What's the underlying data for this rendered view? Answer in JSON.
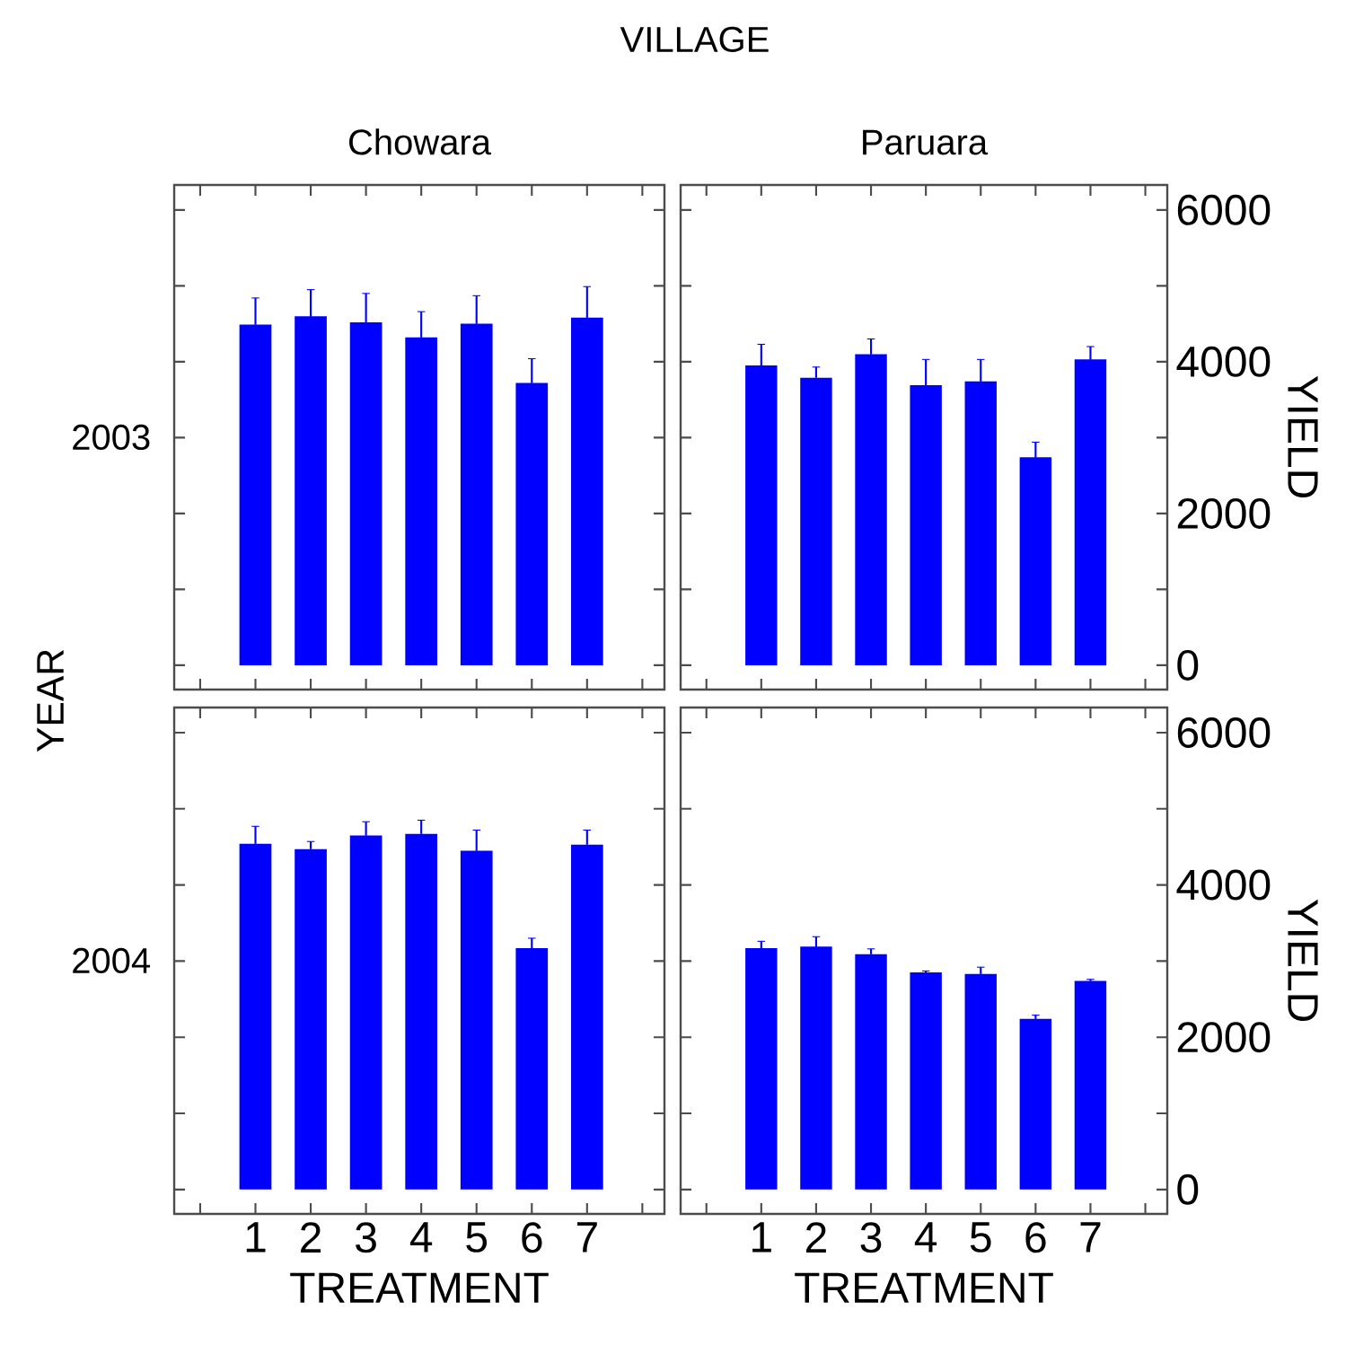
{
  "chart_data": [
    {
      "type": "bar",
      "title": "Chowara",
      "ylabel": "2003",
      "annotations": [
        "VILLAGE",
        "YEAR"
      ],
      "categories": [
        "1",
        "2",
        "3",
        "4",
        "5",
        "6",
        "7"
      ],
      "values": [
        4490,
        4600,
        4520,
        4320,
        4500,
        3720,
        4580
      ],
      "errors": [
        350,
        350,
        380,
        340,
        370,
        320,
        410
      ],
      "color": "#0000ff",
      "ylim": [
        -320,
        6330
      ],
      "yticks": [
        0,
        {
          "value": 1000,
          "label": null
        },
        2000,
        {
          "value": 3000,
          "label": null
        },
        4000,
        {
          "value": 5000,
          "label": null
        },
        6000
      ],
      "tick_labels": false
    },
    {
      "type": "bar",
      "title": "Paruara",
      "ylabel": "YIELD",
      "categories": [
        "1",
        "2",
        "3",
        "4",
        "5",
        "6",
        "7"
      ],
      "values": [
        3950,
        3790,
        4100,
        3690,
        3740,
        2740,
        4030
      ],
      "errors": [
        280,
        140,
        200,
        340,
        290,
        200,
        170
      ],
      "color": "#0000ff",
      "ylim": [
        -320,
        6330
      ],
      "yticks": [
        0,
        {
          "value": 1000,
          "label": null
        },
        2000,
        {
          "value": 3000,
          "label": null
        },
        4000,
        {
          "value": 5000,
          "label": null
        },
        6000
      ],
      "tick_labels": "y"
    },
    {
      "type": "bar",
      "ylabel": "2004",
      "xlabel": "TREATMENT",
      "categories": [
        "1",
        "2",
        "3",
        "4",
        "5",
        "6",
        "7"
      ],
      "values": [
        4540,
        4470,
        4650,
        4670,
        4450,
        3170,
        4530
      ],
      "errors": [
        230,
        100,
        180,
        180,
        270,
        130,
        190
      ],
      "color": "#0000ff",
      "ylim": [
        -320,
        6330
      ],
      "yticks": [
        0,
        {
          "value": 1000,
          "label": null
        },
        2000,
        {
          "value": 3000,
          "label": null
        },
        4000,
        {
          "value": 5000,
          "label": null
        },
        6000
      ],
      "tick_labels": "x"
    },
    {
      "type": "bar",
      "ylabel": "YIELD",
      "xlabel": "TREATMENT",
      "categories": [
        "1",
        "2",
        "3",
        "4",
        "5",
        "6",
        "7"
      ],
      "values": [
        3170,
        3190,
        3090,
        2850,
        2830,
        2240,
        2740
      ],
      "errors": [
        90,
        130,
        70,
        20,
        90,
        50,
        20
      ],
      "color": "#0000ff",
      "ylim": [
        -320,
        6330
      ],
      "yticks": [
        0,
        {
          "value": 1000,
          "label": null
        },
        2000,
        {
          "value": 3000,
          "label": null
        },
        4000,
        {
          "value": 5000,
          "label": null
        },
        6000
      ]
    }
  ]
}
